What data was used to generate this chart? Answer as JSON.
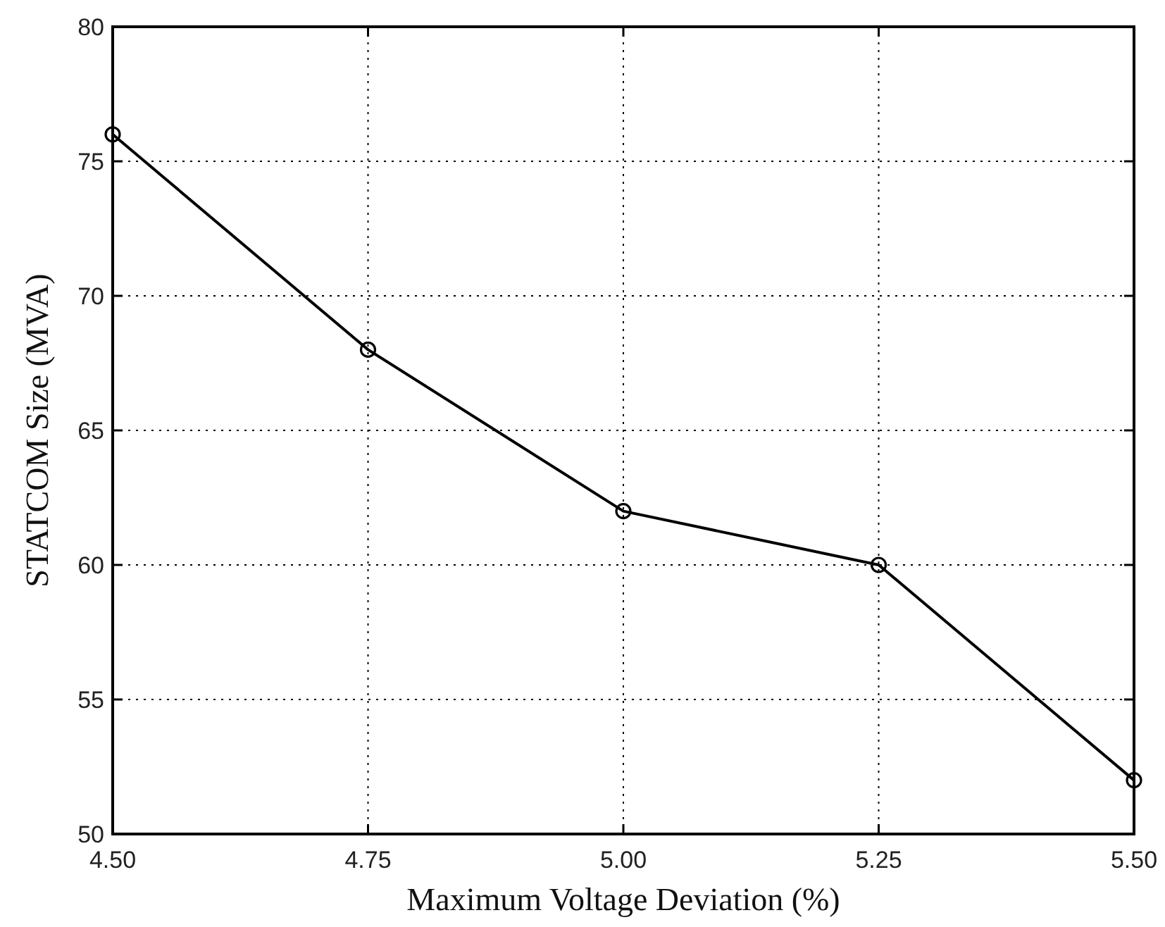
{
  "chart_data": {
    "type": "line",
    "xlabel": "Maximum Voltage Deviation (%)",
    "ylabel": "STATCOM Size (MVA)",
    "x": [
      4.5,
      4.75,
      5.0,
      5.25,
      5.5
    ],
    "series": [
      {
        "color": "#000000",
        "values": [
          76,
          68,
          62,
          60,
          52
        ]
      }
    ],
    "xlim": [
      4.5,
      5.5
    ],
    "xticks": [
      {
        "value": 4.5,
        "label": "4.50"
      },
      {
        "value": 4.75,
        "label": "4.75"
      },
      {
        "value": 5.0,
        "label": "5.00"
      },
      {
        "value": 5.25,
        "label": "5.25"
      },
      {
        "value": 5.5,
        "label": "5.50"
      }
    ],
    "ylim": [
      50,
      80
    ],
    "yticks": [
      50,
      55,
      60,
      65,
      70,
      75,
      80
    ],
    "grid": true,
    "marker": "circle",
    "line_style": "solid"
  }
}
